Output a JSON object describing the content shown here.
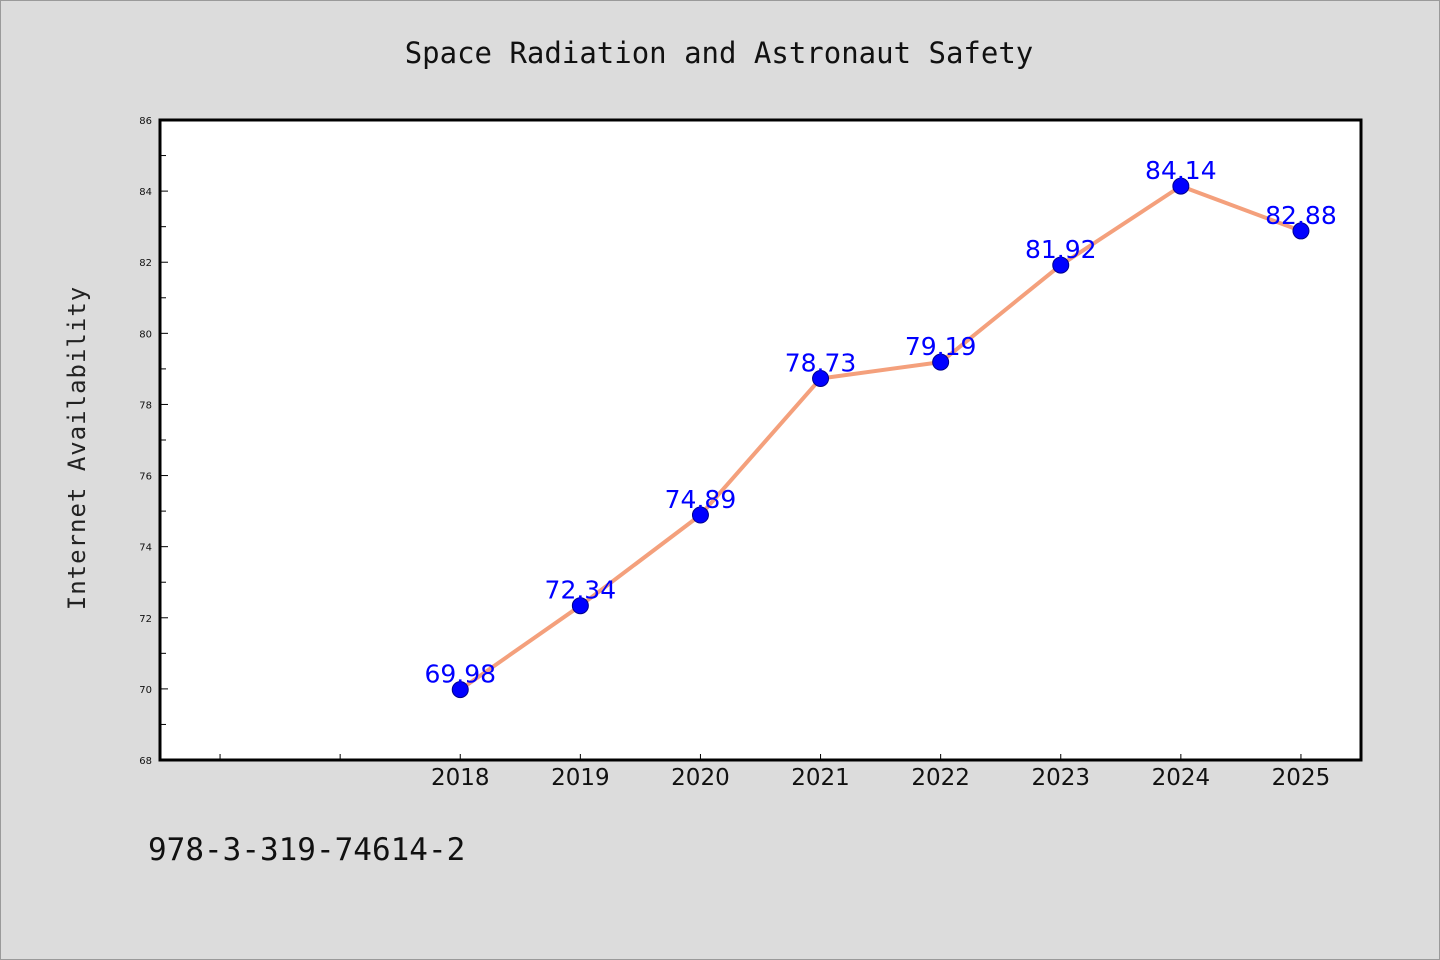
{
  "chart_data": {
    "type": "line",
    "title": "Space Radiation and Astronaut Safety",
    "ylabel": "Internet Availability",
    "xlabel": "",
    "categories": [
      "2018",
      "2019",
      "2020",
      "2021",
      "2022",
      "2023",
      "2024",
      "2025"
    ],
    "series": [
      {
        "values": [
          69.98,
          72.34,
          74.89,
          78.73,
          79.19,
          81.92,
          84.14,
          82.88
        ]
      }
    ],
    "data_labels": [
      "69.98",
      "72.34",
      "74.89",
      "78.73",
      "79.19",
      "81.92",
      "84.14",
      "82.88"
    ],
    "ylim": [
      68,
      86
    ],
    "yticks": [
      "68",
      "70",
      "72",
      "74",
      "76",
      "78",
      "80",
      "82",
      "84",
      "86"
    ],
    "x_index_range": [
      -2.5,
      7.5
    ],
    "grid": false,
    "legend": "none",
    "colors": {
      "line": "#f4a07c",
      "marker": "#0000ff",
      "data_label": "#0000ff",
      "background": "#dcdcdc",
      "plot_area": "#ffffff"
    }
  },
  "footer_code": "978-3-319-74614-2"
}
